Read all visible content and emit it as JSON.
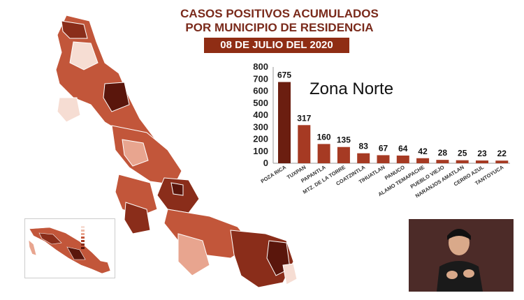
{
  "header": {
    "title_line1": "CASOS POSITIVOS ACUMULADOS",
    "title_line2": "POR MUNICIPIO DE RESIDENCIA",
    "date": "08 DE JULIO DEL 2020"
  },
  "colors": {
    "title": "#7a2a1b",
    "badge": "#8f2d14",
    "bar_dark": "#6b1e10",
    "bar": "#a63a23",
    "map_darkest": "#5a160c",
    "map_dark": "#8a2d1a",
    "map_mid": "#c2563a",
    "map_light": "#e8a58f",
    "map_pale": "#f6ddd3"
  },
  "chart_data": {
    "type": "bar",
    "title": "Zona Norte",
    "categories": [
      "POZA RICA",
      "TUXPAN",
      "PAPANTLA",
      "MTZ. DE LA TORRE",
      "COATZINTLA",
      "TIHUATLAN",
      "PANUCO",
      "ALAMO TEMAPACHE",
      "PUEBLO VIEJO",
      "NARANJOS AMATLAN",
      "CERRO AZUL",
      "TANTOYUCA"
    ],
    "values": [
      675,
      317,
      160,
      135,
      83,
      67,
      64,
      42,
      28,
      25,
      23,
      22
    ],
    "value_labels": [
      "675",
      "317",
      "160",
      "135",
      "83",
      "67",
      "64",
      "42",
      "28",
      "25",
      "23",
      "22"
    ],
    "ylim": [
      0,
      800
    ],
    "yticks": [
      0,
      100,
      200,
      300,
      400,
      500,
      600,
      700,
      800
    ],
    "ytick_labels": [
      "0",
      "100",
      "200",
      "300",
      "400",
      "500",
      "600",
      "700",
      "800"
    ],
    "grid": false,
    "xlabel": "",
    "ylabel": ""
  },
  "inset": {
    "legend_items": [
      "",
      "",
      "",
      "",
      "",
      "",
      ""
    ]
  }
}
